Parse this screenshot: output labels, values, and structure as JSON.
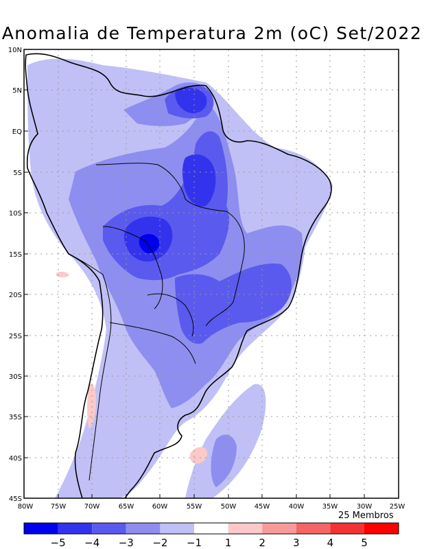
{
  "title": "Anomalia de Temperatura 2m (oC) Set/2022",
  "members_label": "25 Membros",
  "lat_labels": [
    "10N",
    "5N",
    "EQ",
    "5S",
    "10S",
    "15S",
    "20S",
    "25S",
    "30S",
    "35S",
    "40S",
    "45S"
  ],
  "lon_labels": [
    "80W",
    "75W",
    "70W",
    "65W",
    "60W",
    "55W",
    "50W",
    "45W",
    "40W",
    "35W",
    "30W",
    "25W"
  ],
  "colorbar": {
    "colors": [
      "#0000ee",
      "#3333ee",
      "#5a5aee",
      "#8e8ef0",
      "#c0c0f6",
      "#ffffff",
      "#fcc8c8",
      "#f89a9a",
      "#f56565",
      "#f23333",
      "#ff0000"
    ],
    "labels": [
      "−5",
      "−4",
      "−3",
      "−2",
      "−1",
      "1",
      "2",
      "3",
      "4",
      "5"
    ]
  }
}
